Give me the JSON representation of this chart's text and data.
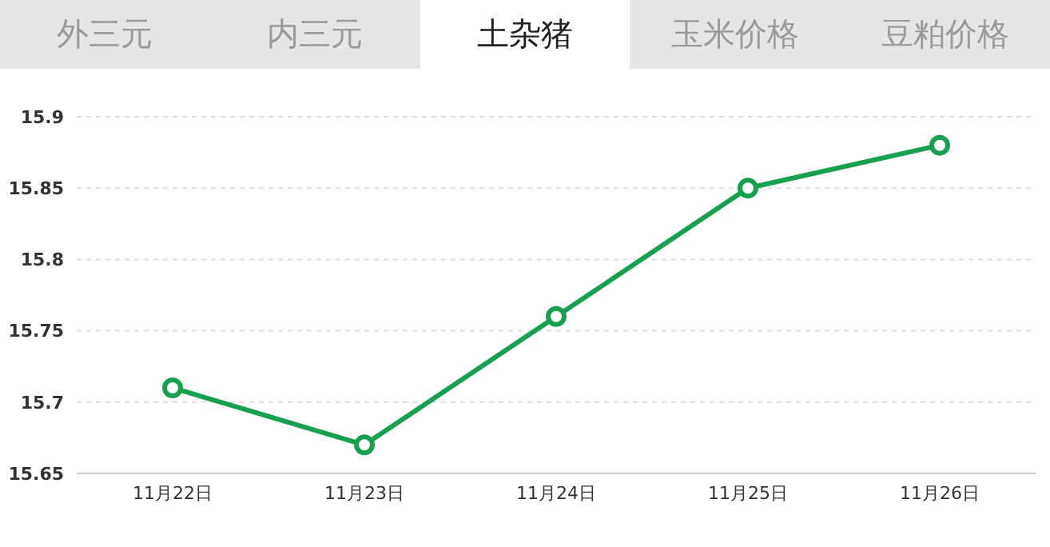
{
  "chart_data": {
    "type": "line",
    "title": "土杂猪",
    "annotations": [
      "外三元",
      "内三元",
      "玉米价格",
      "豆粕价格"
    ],
    "categories": [
      "11月22日",
      "11月23日",
      "11月24日",
      "11月25日",
      "11月26日"
    ],
    "series": [
      {
        "color": "#16a050",
        "values": [
          15.71,
          15.67,
          15.76,
          15.85,
          15.88
        ]
      }
    ],
    "ylim": [
      15.65,
      15.9
    ],
    "yticks": [
      15.65,
      15.7,
      15.75,
      15.8,
      15.85,
      15.9
    ],
    "grid": "y",
    "legend": false,
    "marker": "circle",
    "line_style": "solid"
  }
}
